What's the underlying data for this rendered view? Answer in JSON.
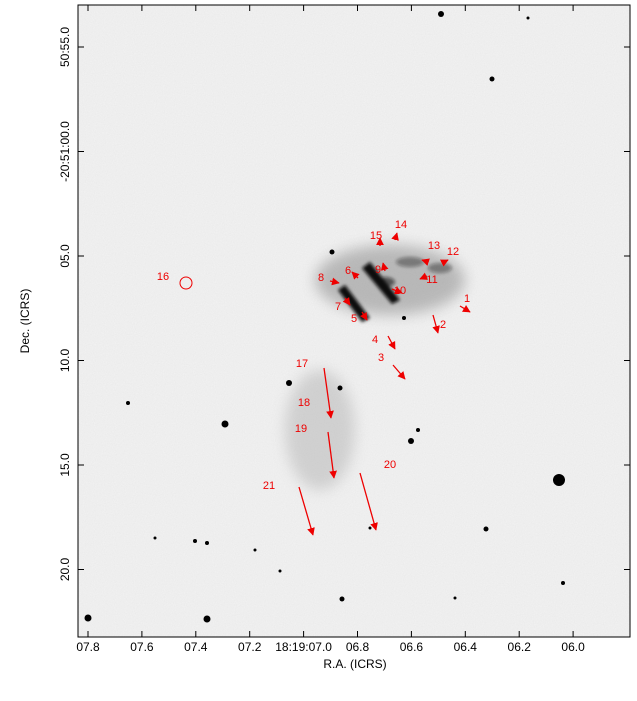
{
  "axes": {
    "x_label": "R.A. (ICRS)",
    "y_label": "Dec. (ICRS)",
    "x_ticks": [
      "07.8",
      "07.6",
      "07.4",
      "07.2",
      "18:19:07.0",
      "06.8",
      "06.6",
      "06.4",
      "06.2",
      "06.0"
    ],
    "y_ticks": [
      "50:55.0",
      "-20:51:00.0",
      "05.0",
      "10.0",
      "15.0",
      "20.0"
    ]
  },
  "labels": [
    "1",
    "2",
    "3",
    "4",
    "5",
    "6",
    "7",
    "8",
    "9",
    "10",
    "11",
    "12",
    "13",
    "14",
    "15",
    "16",
    "17",
    "18",
    "19",
    "20",
    "21"
  ]
}
